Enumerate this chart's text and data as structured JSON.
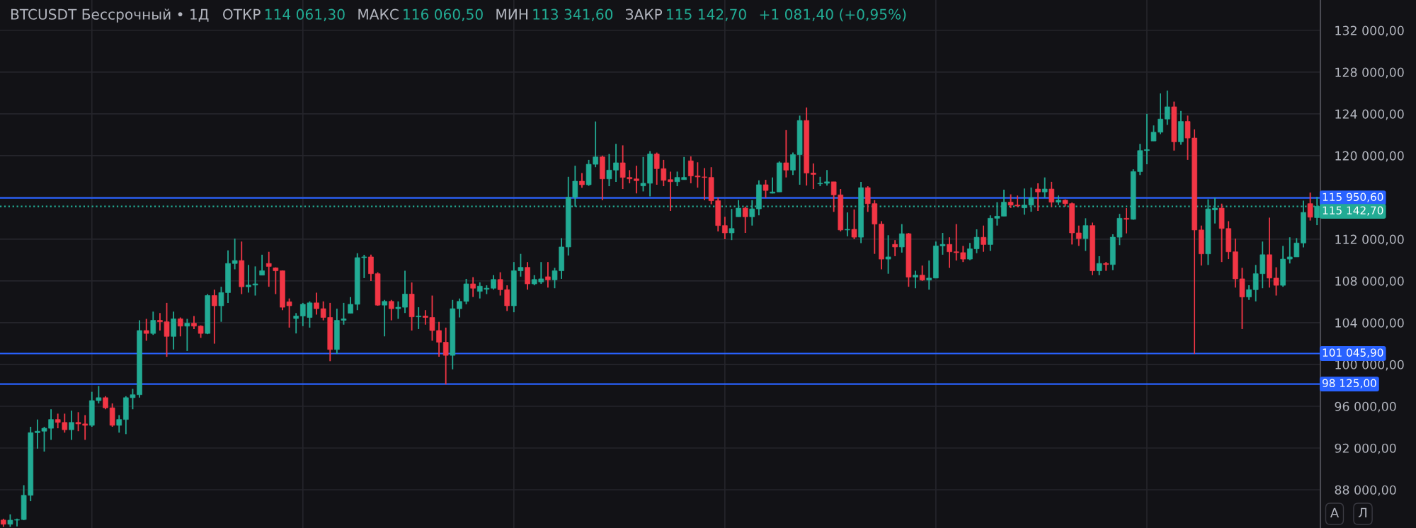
{
  "chart_data": {
    "type": "candlestick",
    "title": "BTCUSDT Бессрочный • 1Д",
    "annotations": [
      "ОТКР",
      "114 061,30",
      "МАКС",
      "116 060,50",
      "МИН",
      "113 341,60",
      "ЗАКР",
      "115 142,70",
      "+1 081,40 (+0,95%)",
      "А",
      "Л"
    ],
    "categories": [
      null,
      null,
      null,
      null,
      null,
      null,
      null,
      null,
      null,
      null,
      null,
      null,
      null,
      null,
      null,
      null,
      null,
      null,
      null,
      null,
      null,
      null,
      null,
      null,
      null,
      null,
      null,
      null,
      null,
      null,
      null,
      null,
      null,
      null,
      null,
      null,
      null,
      null,
      null,
      null,
      null,
      null,
      null,
      null,
      null,
      null,
      null,
      null,
      null,
      null,
      null,
      null,
      null,
      null,
      null,
      null,
      null,
      null,
      null,
      null,
      null,
      null,
      null,
      null,
      null,
      null,
      null,
      null,
      null,
      null,
      null,
      null,
      null,
      null,
      null,
      null,
      null,
      null,
      null,
      null,
      null,
      null,
      null,
      null,
      null,
      null,
      null,
      null,
      null,
      null,
      null,
      null,
      null,
      null,
      null,
      null,
      null,
      null,
      null,
      null,
      null,
      null,
      null,
      null,
      null,
      null,
      null,
      null,
      null,
      null,
      null,
      null,
      null,
      null,
      null,
      null,
      null,
      null,
      null,
      null,
      null,
      null,
      null,
      null,
      null,
      null,
      null,
      null,
      null,
      null,
      null,
      null,
      null,
      null,
      null,
      null,
      null,
      null,
      null,
      null,
      null,
      null,
      null,
      null,
      null,
      null,
      null,
      null,
      null,
      null,
      null,
      null,
      null,
      null,
      null,
      null,
      null,
      null,
      null,
      null,
      null,
      null,
      null,
      null,
      null,
      null,
      null,
      null,
      null,
      null,
      null,
      null,
      null,
      null,
      null,
      null,
      null,
      null,
      null,
      null,
      null,
      null,
      null,
      null,
      null,
      null,
      null,
      null,
      null,
      null,
      null,
      null,
      null,
      null
    ],
    "ohlc": [
      [
        85100,
        85230,
        84450,
        84700
      ],
      [
        84700,
        85650,
        84450,
        85090
      ],
      [
        85090,
        85230,
        84500,
        85150
      ],
      [
        85150,
        88440,
        85090,
        87470
      ],
      [
        87470,
        94030,
        86910,
        93470
      ],
      [
        93470,
        94730,
        91940,
        93610
      ],
      [
        93610,
        94030,
        91660,
        93890
      ],
      [
        93890,
        95710,
        92780,
        94730
      ],
      [
        94730,
        95290,
        93890,
        94450
      ],
      [
        94450,
        95290,
        93470,
        93750
      ],
      [
        93750,
        95570,
        92780,
        94450
      ],
      [
        94450,
        95430,
        93610,
        94310
      ],
      [
        94310,
        95150,
        92780,
        94170
      ],
      [
        94170,
        97380,
        94030,
        96540
      ],
      [
        96540,
        97940,
        96270,
        96820
      ],
      [
        96820,
        96960,
        95710,
        95850
      ],
      [
        95850,
        96270,
        94030,
        94170
      ],
      [
        94170,
        95150,
        93470,
        94730
      ],
      [
        94730,
        96960,
        93330,
        96820
      ],
      [
        96820,
        97660,
        95710,
        97100
      ],
      [
        97100,
        104225,
        96820,
        103250
      ],
      [
        103250,
        104365,
        102270,
        102970
      ],
      [
        102970,
        105060,
        102830,
        104225
      ],
      [
        104225,
        104920,
        103250,
        104085
      ],
      [
        104085,
        105900,
        100735,
        102690
      ],
      [
        102690,
        105060,
        101430,
        104365
      ],
      [
        104365,
        104500,
        102690,
        103670
      ],
      [
        103670,
        104365,
        101290,
        103950
      ],
      [
        103950,
        104640,
        103390,
        103670
      ],
      [
        103670,
        103750,
        102550,
        102970
      ],
      [
        102970,
        106740,
        102900,
        106600
      ],
      [
        106600,
        107160,
        101990,
        105620
      ],
      [
        105620,
        107440,
        104085,
        106880
      ],
      [
        106880,
        110930,
        105900,
        109670
      ],
      [
        109670,
        112050,
        109110,
        109950
      ],
      [
        109950,
        111770,
        106740,
        107440
      ],
      [
        107440,
        109530,
        106880,
        107600
      ],
      [
        107600,
        109390,
        106600,
        107720
      ],
      [
        108550,
        110510,
        108550,
        108970
      ],
      [
        109670,
        110790,
        107440,
        109390
      ],
      [
        109250,
        109300,
        106740,
        108970
      ],
      [
        108970,
        109000,
        105200,
        105480
      ],
      [
        106000,
        106320,
        103530,
        105620
      ],
      [
        104400,
        104920,
        102970,
        104640
      ],
      [
        104640,
        105900,
        103670,
        105760
      ],
      [
        104500,
        106040,
        103530,
        105900
      ],
      [
        105900,
        106880,
        104780,
        105340
      ],
      [
        105340,
        106040,
        104225,
        104500
      ],
      [
        104500,
        105900,
        100315,
        101430
      ],
      [
        101430,
        105340,
        101010,
        104225
      ],
      [
        104225,
        105900,
        103810,
        104365
      ],
      [
        104900,
        106460,
        104900,
        105760
      ],
      [
        105760,
        110650,
        105200,
        110230
      ],
      [
        110230,
        110500,
        108270,
        110300
      ],
      [
        110300,
        110510,
        107990,
        108690
      ],
      [
        108690,
        108830,
        105620,
        105680
      ],
      [
        105680,
        106180,
        102690,
        106040
      ],
      [
        106040,
        106180,
        104225,
        105340
      ],
      [
        105340,
        106040,
        104365,
        105480
      ],
      [
        105480,
        108970,
        104920,
        106740
      ],
      [
        106740,
        107850,
        103250,
        104560
      ],
      [
        104560,
        105480,
        103390,
        104640
      ],
      [
        104640,
        105200,
        103810,
        104500
      ],
      [
        104500,
        106600,
        102270,
        103250
      ],
      [
        103250,
        104085,
        100735,
        102130
      ],
      [
        102130,
        103530,
        98090,
        100870
      ],
      [
        100870,
        106180,
        99530,
        105340
      ],
      [
        105340,
        106320,
        104500,
        106040
      ],
      [
        106040,
        108200,
        105760,
        107720
      ],
      [
        107720,
        108360,
        106460,
        107300
      ],
      [
        107000,
        107860,
        106320,
        107500
      ],
      [
        107200,
        107580,
        106740,
        107300
      ],
      [
        107300,
        108550,
        107160,
        108140
      ],
      [
        108140,
        108830,
        106600,
        107160
      ],
      [
        107160,
        107580,
        105120,
        105620
      ],
      [
        105620,
        109810,
        105000,
        108970
      ],
      [
        108970,
        110590,
        108410,
        109300
      ],
      [
        109300,
        109810,
        107160,
        107720
      ],
      [
        107720,
        108550,
        107580,
        108140
      ],
      [
        107900,
        109810,
        107720,
        108200
      ],
      [
        108400,
        109810,
        107360,
        108100
      ],
      [
        108100,
        109250,
        107300,
        108970
      ],
      [
        108970,
        112100,
        108200,
        111250
      ],
      [
        111250,
        117970,
        110430,
        116010
      ],
      [
        116010,
        119030,
        115120,
        117550
      ],
      [
        117550,
        118330,
        116930,
        117210
      ],
      [
        117210,
        119590,
        117100,
        119170
      ],
      [
        119170,
        123270,
        118890,
        119870
      ],
      [
        119870,
        120000,
        115730,
        117770
      ],
      [
        117770,
        120150,
        117070,
        118610
      ],
      [
        118610,
        121120,
        117490,
        119310
      ],
      [
        119310,
        120980,
        116800,
        117910
      ],
      [
        117910,
        118610,
        117350,
        117770
      ],
      [
        117770,
        119030,
        116380,
        117600
      ],
      [
        117100,
        119870,
        116570,
        117350
      ],
      [
        117350,
        120430,
        116100,
        120150
      ],
      [
        120150,
        120290,
        117210,
        118750
      ],
      [
        118750,
        119590,
        117070,
        117630
      ],
      [
        117700,
        118470,
        114700,
        117500
      ],
      [
        117500,
        118470,
        117070,
        117910
      ],
      [
        117700,
        119870,
        117700,
        117910
      ],
      [
        119500,
        119920,
        117350,
        118050
      ],
      [
        118050,
        119360,
        116930,
        117960
      ],
      [
        117960,
        118800,
        115730,
        117910
      ],
      [
        117910,
        118890,
        115340,
        115680
      ],
      [
        115680,
        115960,
        112740,
        113300
      ],
      [
        113300,
        114140,
        111990,
        112600
      ],
      [
        112600,
        114890,
        111910,
        113020
      ],
      [
        114140,
        115730,
        114140,
        114970
      ],
      [
        114970,
        115120,
        112600,
        114140
      ],
      [
        114140,
        115730,
        113300,
        114900
      ],
      [
        114900,
        117630,
        114280,
        117210
      ],
      [
        117210,
        117680,
        115960,
        116660
      ],
      [
        116400,
        117910,
        116380,
        116520
      ],
      [
        116520,
        119440,
        116520,
        119310
      ],
      [
        119310,
        122440,
        117910,
        118610
      ],
      [
        118610,
        120290,
        118140,
        120090
      ],
      [
        120090,
        123830,
        117210,
        123360
      ],
      [
        123360,
        124610,
        117130,
        118330
      ],
      [
        118330,
        119250,
        116800,
        118200
      ],
      [
        117300,
        117970,
        117070,
        117350
      ],
      [
        117350,
        118610,
        117130,
        117490
      ],
      [
        117490,
        117490,
        114610,
        116240
      ],
      [
        116240,
        116800,
        112740,
        112880
      ],
      [
        112880,
        114560,
        112270,
        112940
      ],
      [
        112940,
        114840,
        111990,
        112190
      ],
      [
        112190,
        117490,
        111620,
        116930
      ],
      [
        116930,
        117070,
        114610,
        115400
      ],
      [
        115400,
        115730,
        110590,
        113440
      ],
      [
        113440,
        113720,
        109110,
        110090
      ],
      [
        110090,
        112380,
        108690,
        110300
      ],
      [
        111500,
        111910,
        110370,
        111250
      ],
      [
        111250,
        113440,
        110710,
        112520
      ],
      [
        112520,
        112600,
        107440,
        108360
      ],
      [
        108360,
        108970,
        107300,
        108550
      ],
      [
        108550,
        109470,
        108000,
        108080
      ],
      [
        108080,
        109950,
        107160,
        108270
      ],
      [
        108270,
        111770,
        108270,
        111350
      ],
      [
        111350,
        112600,
        110510,
        111500
      ],
      [
        111500,
        112180,
        109250,
        110790
      ],
      [
        110790,
        113440,
        109950,
        110710
      ],
      [
        110710,
        111350,
        109810,
        110090
      ],
      [
        110090,
        111630,
        110000,
        111070
      ],
      [
        111070,
        112940,
        110650,
        112180
      ],
      [
        112180,
        113300,
        110790,
        111490
      ],
      [
        111490,
        114280,
        110870,
        114000
      ],
      [
        114000,
        115540,
        113300,
        114200
      ],
      [
        114200,
        116740,
        114200,
        115540
      ],
      [
        115540,
        116290,
        114980,
        115260
      ],
      [
        115260,
        116180,
        115070,
        115180
      ],
      [
        115000,
        116850,
        114340,
        115260
      ],
      [
        115260,
        116940,
        114620,
        115960
      ],
      [
        116800,
        117350,
        114700,
        116520
      ],
      [
        116520,
        117910,
        115960,
        116800
      ],
      [
        116800,
        117490,
        115070,
        115540
      ],
      [
        115540,
        116180,
        115260,
        115730
      ],
      [
        115730,
        115820,
        115120,
        115400
      ],
      [
        115400,
        115500,
        111490,
        112600
      ],
      [
        112600,
        113300,
        111350,
        112050
      ],
      [
        112050,
        114000,
        110870,
        113300
      ],
      [
        113300,
        113580,
        108550,
        108970
      ],
      [
        108970,
        110370,
        108550,
        109670
      ],
      [
        109670,
        109810,
        108970,
        109570
      ],
      [
        109570,
        112470,
        109030,
        112190
      ],
      [
        112190,
        114420,
        111430,
        114000
      ],
      [
        114000,
        114980,
        112550,
        113900
      ],
      [
        113900,
        118690,
        113860,
        118470
      ],
      [
        118470,
        121120,
        118140,
        120480
      ],
      [
        120480,
        124000,
        119170,
        120570
      ],
      [
        121400,
        122890,
        121400,
        122240
      ],
      [
        122240,
        125960,
        122050,
        123500
      ],
      [
        123500,
        126230,
        122940,
        124670
      ],
      [
        124670,
        125170,
        120480,
        121320
      ],
      [
        121320,
        124280,
        121040,
        123270
      ],
      [
        123270,
        123830,
        119590,
        121680
      ],
      [
        121680,
        122520,
        101010,
        112880
      ],
      [
        112880,
        113300,
        109470,
        110590
      ],
      [
        110590,
        115820,
        109530,
        114900
      ],
      [
        114800,
        115960,
        113500,
        114970
      ],
      [
        114970,
        115400,
        109810,
        113020
      ],
      [
        113020,
        113720,
        110090,
        110790
      ],
      [
        110790,
        112050,
        107360,
        108200
      ],
      [
        108200,
        109250,
        103390,
        106460
      ],
      [
        106460,
        107580,
        106180,
        107160
      ],
      [
        107160,
        109530,
        106040,
        108690
      ],
      [
        108690,
        111770,
        107300,
        110510
      ],
      [
        110510,
        114060,
        107360,
        108270
      ],
      [
        108270,
        109310,
        106600,
        107580
      ],
      [
        107580,
        111350,
        107440,
        110090
      ],
      [
        110090,
        112180,
        109670,
        110300
      ],
      [
        110300,
        112100,
        110300,
        111630
      ],
      [
        111630,
        115680,
        111210,
        114560
      ],
      [
        115400,
        116460,
        113780,
        114100
      ],
      [
        114061.3,
        116060.5,
        113341.6,
        115142.7
      ]
    ],
    "ylim": [
      84340,
      134900
    ],
    "yticks": [
      {
        "value": 132000,
        "label": "132 000,00"
      },
      {
        "value": 128000,
        "label": "128 000,00"
      },
      {
        "value": 124000,
        "label": "124 000,00"
      },
      {
        "value": 120000,
        "label": "120 000,00"
      },
      {
        "value": 116000,
        "label": null
      },
      {
        "value": 112000,
        "label": "112 000,00"
      },
      {
        "value": 108000,
        "label": "108 000,00"
      },
      {
        "value": 104000,
        "label": "104 000,00"
      },
      {
        "value": 100000,
        "label": "100 000,00"
      },
      {
        "value": 96000,
        "label": "96 000,00"
      },
      {
        "value": 92000,
        "label": "92 000,00"
      },
      {
        "value": 88000,
        "label": "88 000,00"
      }
    ],
    "ref_lines": [
      {
        "axis": "y",
        "value": 115950.6,
        "label": "115 950,60",
        "color": "#2962ff",
        "line_style": "solid"
      },
      {
        "axis": "y",
        "value": 115142.7,
        "label": "115 142,70",
        "color": "#22ab94",
        "line_style": "dotted"
      },
      {
        "axis": "y",
        "value": 101045.9,
        "label": "101 045,90",
        "color": "#2962ff",
        "line_style": "solid"
      },
      {
        "axis": "y",
        "value": 98125,
        "label": "98 125,00",
        "color": "#2962ff",
        "line_style": "solid"
      }
    ],
    "grid": true
  }
}
